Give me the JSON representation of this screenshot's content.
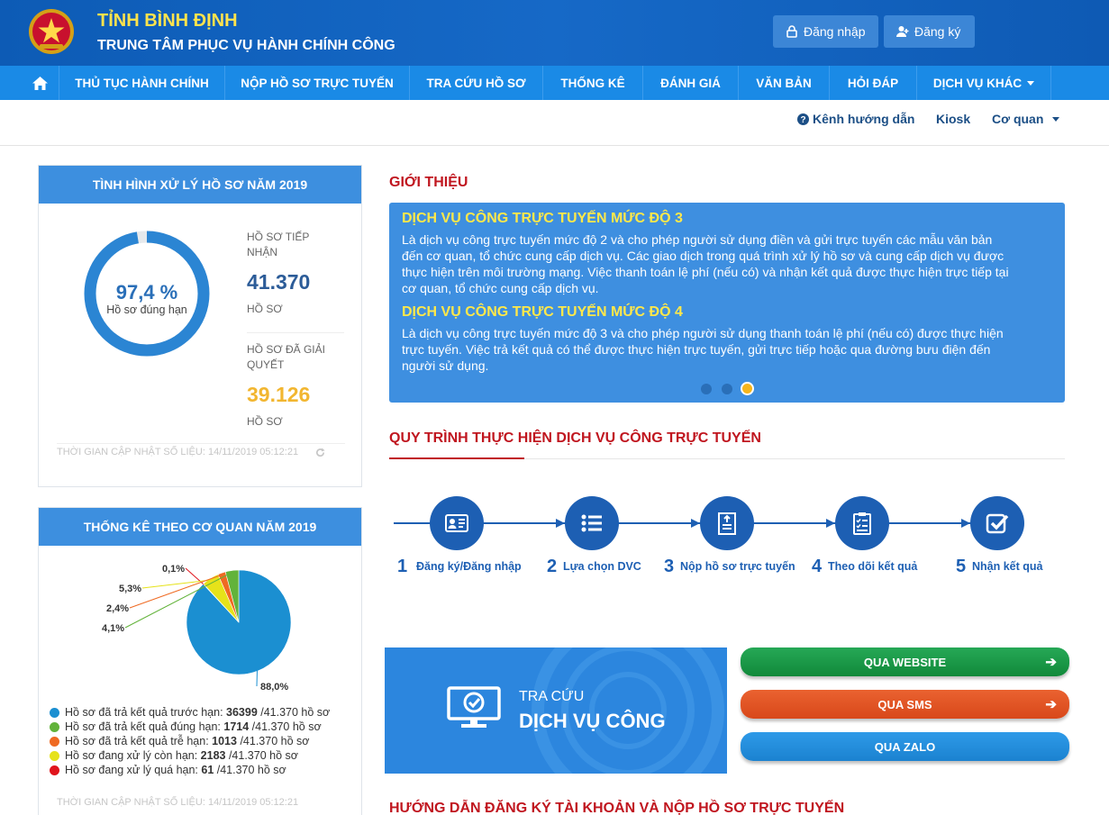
{
  "header": {
    "title": "TỈNH BÌNH ĐỊNH",
    "subtitle": "TRUNG TÂM PHỤC VỤ HÀNH CHÍNH CÔNG",
    "login_label": "Đăng nhập",
    "register_label": "Đăng ký"
  },
  "nav": {
    "items": [
      "THỦ TỤC HÀNH CHÍNH",
      "NỘP HỒ SƠ TRỰC TUYẾN",
      "TRA CỨU HỒ SƠ",
      "THỐNG KÊ",
      "ĐÁNH GIÁ",
      "VĂN BẢN",
      "HỎI ĐÁP",
      "DỊCH VỤ KHÁC"
    ]
  },
  "subnav": {
    "guide": "Kênh hướng dẫn",
    "kiosk": "Kiosk",
    "agency": "Cơ quan"
  },
  "status_panel": {
    "title": "TÌNH HÌNH XỬ LÝ HỒ SƠ NĂM 2019",
    "percent": "97,4 %",
    "percent_value": 97.4,
    "percent_caption": "Hồ sơ đúng hạn",
    "received_label_1": "HỒ SƠ TIẾP",
    "received_label_2": "NHẬN",
    "received_value": "41.370",
    "received_unit": "HỒ SƠ",
    "resolved_label_1": "HỒ SƠ ĐÃ GIẢI",
    "resolved_label_2": "QUYẾT",
    "resolved_value": "39.126",
    "resolved_unit": "HỒ SƠ",
    "updated": "THỜI GIAN CẬP NHẬT SỐ LIỆU: 14/11/2019 05:12:21"
  },
  "agency_panel": {
    "title": "THỐNG KÊ THEO CƠ QUAN NĂM 2019",
    "updated": "THỜI GIAN CẬP NHẬT SỐ LIỆU: 14/11/2019 05:12:21",
    "legend": [
      {
        "pre": "Hồ sơ đã trả kết quả trước hạn: ",
        "num": "36399",
        "post": " /41.370 hồ sơ",
        "color": "#1b8fd1"
      },
      {
        "pre": "Hồ sơ đã trả kết quả đúng hạn: ",
        "num": "1714",
        "post": " /41.370 hồ sơ",
        "color": "#62b33a"
      },
      {
        "pre": "Hồ sơ đã trả kết quả trễ hạn: ",
        "num": "1013",
        "post": " /41.370 hồ sơ",
        "color": "#ef6a22"
      },
      {
        "pre": "Hồ sơ đang xử lý còn hạn: ",
        "num": "2183",
        "post": " /41.370 hồ sơ",
        "color": "#e6e21a"
      },
      {
        "pre": "Hồ sơ đang xử lý quá hạn: ",
        "num": "61",
        "post": " /41.370 hồ sơ",
        "color": "#e0141c"
      }
    ]
  },
  "chart_data": {
    "type": "pie",
    "title": "",
    "slices": [
      {
        "label": "88,0%",
        "value": 88.0,
        "color": "#1b8fd1"
      },
      {
        "label": "4,1%",
        "value": 4.1,
        "color": "#62b33a"
      },
      {
        "label": "2,4%",
        "value": 2.4,
        "color": "#ef6a22"
      },
      {
        "label": "5,3%",
        "value": 5.3,
        "color": "#e6e21a"
      },
      {
        "label": "0,1%",
        "value": 0.1,
        "color": "#e0141c"
      }
    ]
  },
  "intro": {
    "section_title": "GIỚI THIỆU",
    "h1": "DỊCH VỤ CÔNG TRỰC TUYẾN MỨC ĐỘ 3",
    "p1_l1": "Là dịch vụ công trực tuyến mức độ 2 và cho phép người sử dụng điền và gửi trực tuyến các mẫu văn bản",
    "p1_l2": "đến cơ quan, tổ chức cung cấp dịch vụ. Các giao dịch trong quá trình xử lý hồ sơ và cung cấp dịch vụ được",
    "p1_l3": "thực hiện trên môi trường mạng. Việc thanh toán lệ phí (nếu có) và nhận kết quả được thực hiện trực tiếp tại",
    "p1_l4": "cơ quan, tổ chức cung cấp dịch vụ.",
    "h2": "DỊCH VỤ CÔNG TRỰC TUYẾN MỨC ĐỘ 4",
    "p2_l1": "Là dịch vụ công trực tuyến mức độ 3 và cho phép người sử dụng thanh toán lệ phí (nếu có) được thực hiện",
    "p2_l2": "trực tuyến. Việc trả kết quả có thể được thực hiện trực tuyến, gửi trực tiếp hoặc qua đường bưu điện đến",
    "p2_l3": "người sử dụng."
  },
  "process": {
    "section_title": "QUY TRÌNH THỰC HIỆN DỊCH VỤ CÔNG TRỰC TUYẾN",
    "steps": [
      {
        "num": "1",
        "label": "Đăng ký/Đăng nhập"
      },
      {
        "num": "2",
        "label": "Lựa chọn DVC"
      },
      {
        "num": "3",
        "label": "Nộp hồ sơ trực tuyến"
      },
      {
        "num": "4",
        "label": "Theo dõi kết quả"
      },
      {
        "num": "5",
        "label": "Nhận kết quả"
      }
    ]
  },
  "lookup": {
    "line1": "TRA CỨU",
    "line2": "DỊCH VỤ CÔNG",
    "website": "QUA WEBSITE",
    "sms": "QUA SMS",
    "zalo": "QUA ZALO"
  },
  "guide_title": "HƯỚNG DẪN ĐĂNG KÝ TÀI KHOẢN VÀ NỘP HỒ SƠ TRỰC TUYẾN"
}
